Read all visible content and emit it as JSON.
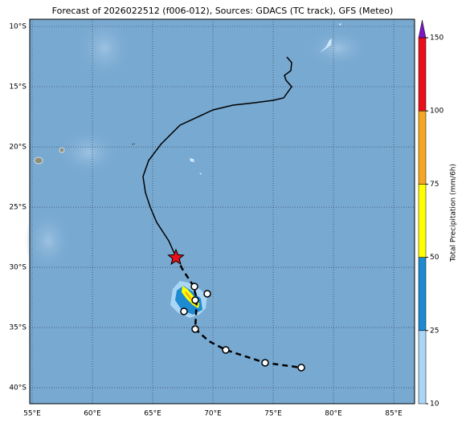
{
  "title": "Forecast of 2026022512 (f006-012), Sources: GDACS (TC track), GFS (Meteo)",
  "map": {
    "lonlim": [
      54.8,
      86.73
    ],
    "latlim": [
      -41.33,
      -9.4
    ],
    "lon_ticks": [
      {
        "value": 55,
        "label": "55°E"
      },
      {
        "value": 60,
        "label": "60°E"
      },
      {
        "value": 65,
        "label": "65°E"
      },
      {
        "value": 70,
        "label": "70°E"
      },
      {
        "value": 75,
        "label": "75°E"
      },
      {
        "value": 80,
        "label": "80°E"
      },
      {
        "value": 85,
        "label": "85°E"
      }
    ],
    "lat_ticks": [
      {
        "value": -10,
        "label": "10°S"
      },
      {
        "value": -15,
        "label": "15°S"
      },
      {
        "value": -20,
        "label": "20°S"
      },
      {
        "value": -25,
        "label": "25°S"
      },
      {
        "value": -30,
        "label": "30°S"
      },
      {
        "value": -35,
        "label": "35°S"
      },
      {
        "value": -40,
        "label": "40°S"
      }
    ]
  },
  "colorbar": {
    "label": "Total Precipitation (mm/6h)",
    "levels": [
      10,
      25,
      50,
      75,
      100,
      150
    ],
    "colors": [
      "#a9d6f5",
      "#1e8ad2",
      "#ffff00",
      "#f5a623",
      "#e8101a"
    ],
    "extend_color": "#7b18c4"
  }
}
